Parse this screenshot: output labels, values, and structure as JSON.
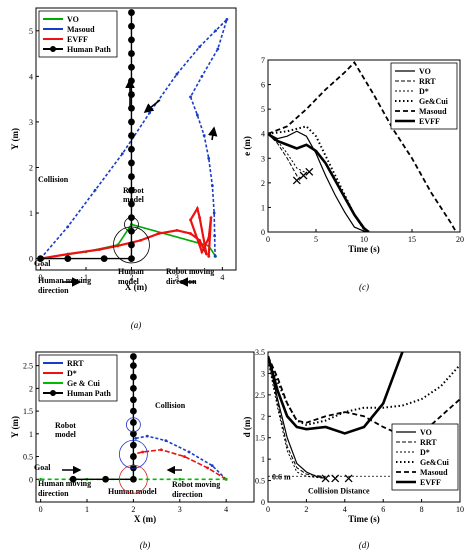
{
  "chart_data": [
    {
      "id": "a",
      "type": "line",
      "panel_label": "(a)",
      "xlabel": "X (m)",
      "ylabel": "Y (m)",
      "xlim": [
        -0.1,
        4.3
      ],
      "ylim": [
        -0.25,
        5.5
      ],
      "xticks": [
        "0",
        "1",
        "2",
        "3",
        "4"
      ],
      "yticks": [
        "0",
        "1",
        "2",
        "3",
        "4",
        "5"
      ],
      "legend_position": "top-left",
      "series": [
        {
          "name": "VO",
          "color": "#00aa00",
          "points": [
            [
              0.0,
              0.0
            ],
            [
              1.0,
              0.15
            ],
            [
              1.7,
              0.3
            ],
            [
              2.0,
              0.75
            ],
            [
              3.7,
              0.28
            ],
            [
              3.85,
              0.05
            ]
          ]
        },
        {
          "name": "Masoud",
          "color": "#1a3cc8",
          "points": [
            [
              0.0,
              0.0
            ],
            [
              0.6,
              0.7
            ],
            [
              1.2,
              1.5
            ],
            [
              1.8,
              2.3
            ],
            [
              2.4,
              3.2
            ],
            [
              3.0,
              4.05
            ],
            [
              3.5,
              4.65
            ],
            [
              3.85,
              5.0
            ],
            [
              4.1,
              5.25
            ],
            [
              3.9,
              4.6
            ],
            [
              3.55,
              4.0
            ],
            [
              3.3,
              3.55
            ],
            [
              3.45,
              3.15
            ],
            [
              3.6,
              2.7
            ],
            [
              3.7,
              2.2
            ],
            [
              3.78,
              1.6
            ],
            [
              3.82,
              1.0
            ],
            [
              3.83,
              0.5
            ],
            [
              3.84,
              0.05
            ]
          ]
        },
        {
          "name": "EVFF",
          "color": "#ee1111",
          "points": [
            [
              0.0,
              0.0
            ],
            [
              0.6,
              0.1
            ],
            [
              1.3,
              0.2
            ],
            [
              1.7,
              0.28
            ],
            [
              2.2,
              0.4
            ],
            [
              2.6,
              0.55
            ],
            [
              3.0,
              0.62
            ],
            [
              3.3,
              0.55
            ],
            [
              3.5,
              0.4
            ],
            [
              3.6,
              0.2
            ],
            [
              3.65,
              0.1
            ],
            [
              3.5,
              0.9
            ],
            [
              3.45,
              1.1
            ],
            [
              3.3,
              0.85
            ],
            [
              3.55,
              0.15
            ],
            [
              3.7,
              0.45
            ],
            [
              3.75,
              0.9
            ],
            [
              3.7,
              0.05
            ]
          ]
        },
        {
          "name": "Human Path",
          "color": "#000000",
          "points": [
            [
              0.0,
              0.0
            ],
            [
              0.6,
              0.0
            ],
            [
              1.4,
              0.0
            ],
            [
              2.0,
              0.0
            ],
            [
              2.0,
              0.3
            ],
            [
              2.0,
              0.6
            ],
            [
              2.0,
              0.9
            ],
            [
              2.0,
              1.2
            ],
            [
              2.0,
              1.5
            ],
            [
              2.0,
              1.8
            ],
            [
              2.0,
              2.1
            ],
            [
              2.0,
              2.4
            ],
            [
              2.0,
              2.7
            ],
            [
              2.0,
              3.0
            ],
            [
              2.0,
              3.3
            ],
            [
              2.0,
              3.6
            ],
            [
              2.0,
              3.9
            ],
            [
              2.0,
              4.2
            ],
            [
              2.0,
              4.5
            ],
            [
              2.0,
              4.8
            ],
            [
              2.0,
              5.1
            ],
            [
              2.0,
              5.4
            ]
          ]
        }
      ],
      "annotations": [
        "Collision",
        "Robot model",
        "Goal",
        "Human moving direction",
        "Human model",
        "Robot moving direction"
      ]
    },
    {
      "id": "b",
      "type": "line",
      "panel_label": "(b)",
      "xlabel": "X (m)",
      "ylabel": "Y (m)",
      "xlim": [
        -0.1,
        4.6
      ],
      "ylim": [
        -0.5,
        2.8
      ],
      "xticks": [
        "0",
        "1",
        "2",
        "3",
        "4"
      ],
      "yticks": [
        "0",
        "0.5",
        "1",
        "1.5",
        "2",
        "2.5"
      ],
      "legend_position": "top-left",
      "series": [
        {
          "name": "RRT",
          "color": "#1a3cc8",
          "points": [
            [
              4.0,
              0.0
            ],
            [
              3.7,
              0.3
            ],
            [
              3.2,
              0.6
            ],
            [
              2.7,
              0.85
            ],
            [
              2.3,
              0.95
            ],
            [
              2.05,
              0.9
            ]
          ]
        },
        {
          "name": "D*",
          "color": "#ee1111",
          "points": [
            [
              4.0,
              0.0
            ],
            [
              3.6,
              0.25
            ],
            [
              3.1,
              0.5
            ],
            [
              2.6,
              0.65
            ],
            [
              2.2,
              0.6
            ],
            [
              2.0,
              0.55
            ]
          ]
        },
        {
          "name": "Ge & Cui",
          "color": "#00bb00",
          "points": [
            [
              0.0,
              0.0
            ],
            [
              1.0,
              0.0
            ],
            [
              2.0,
              0.0
            ],
            [
              3.0,
              0.0
            ],
            [
              4.0,
              0.0
            ]
          ]
        },
        {
          "name": "Human Path",
          "color": "#000000",
          "points": [
            [
              0.7,
              0.0
            ],
            [
              1.4,
              0.0
            ],
            [
              2.0,
              0.0
            ],
            [
              2.0,
              0.25
            ],
            [
              2.0,
              0.5
            ],
            [
              2.0,
              0.75
            ],
            [
              2.0,
              1.0
            ],
            [
              2.0,
              1.25
            ],
            [
              2.0,
              1.5
            ],
            [
              2.0,
              1.75
            ],
            [
              2.0,
              2.0
            ],
            [
              2.0,
              2.25
            ],
            [
              2.0,
              2.5
            ],
            [
              2.0,
              2.7
            ]
          ]
        }
      ],
      "annotations": [
        "Collision",
        "Robot model",
        "Goal",
        "Human moving direction",
        "Human model",
        "Robot moving direction"
      ]
    },
    {
      "id": "c",
      "type": "line",
      "panel_label": "(c)",
      "xlabel": "Time (s)",
      "ylabel": "e (m)",
      "xlim": [
        0,
        20
      ],
      "ylim": [
        0,
        7
      ],
      "xticks": [
        "0",
        "5",
        "10",
        "15",
        "20"
      ],
      "yticks": [
        "0",
        "1",
        "2",
        "3",
        "4",
        "5",
        "6",
        "7"
      ],
      "legend_position": "top-right",
      "series": [
        {
          "name": "VO",
          "style": "solid-thin",
          "points": [
            [
              0,
              4.0
            ],
            [
              1,
              3.8
            ],
            [
              2,
              3.9
            ],
            [
              3,
              4.1
            ],
            [
              4,
              3.9
            ],
            [
              5,
              3.2
            ],
            [
              6,
              2.3
            ],
            [
              7,
              1.5
            ],
            [
              8,
              0.8
            ],
            [
              9,
              0.2
            ],
            [
              10.2,
              0.0
            ]
          ]
        },
        {
          "name": "RRT",
          "style": "dashed-thin",
          "points": [
            [
              0,
              4.0
            ],
            [
              1,
              3.6
            ],
            [
              2,
              3.0
            ],
            [
              3,
              2.3
            ],
            [
              3.3,
              2.1
            ]
          ]
        },
        {
          "name": "D*",
          "style": "dashed-fine",
          "points": [
            [
              0,
              4.0
            ],
            [
              1,
              3.7
            ],
            [
              2,
              3.2
            ],
            [
              3,
              2.6
            ],
            [
              4,
              2.4
            ]
          ]
        },
        {
          "name": "Ge&Cui",
          "style": "dotted-thick",
          "points": [
            [
              0,
              4.0
            ],
            [
              2,
              4.1
            ],
            [
              4,
              4.3
            ],
            [
              5,
              3.9
            ],
            [
              6,
              3.1
            ],
            [
              7,
              2.3
            ],
            [
              8,
              1.5
            ],
            [
              9,
              0.7
            ],
            [
              10,
              0.1
            ],
            [
              10.3,
              0.0
            ]
          ]
        },
        {
          "name": "Masoud",
          "style": "dashed-thick",
          "points": [
            [
              0,
              4.0
            ],
            [
              2,
              4.3
            ],
            [
              4,
              5.0
            ],
            [
              6,
              5.8
            ],
            [
              8,
              6.5
            ],
            [
              9,
              6.9
            ],
            [
              11,
              5.6
            ],
            [
              13,
              4.2
            ],
            [
              15,
              3.0
            ],
            [
              17,
              1.6
            ],
            [
              19,
              0.4
            ],
            [
              19.6,
              0.0
            ]
          ]
        },
        {
          "name": "EVFF",
          "style": "solid-thick",
          "points": [
            [
              0,
              4.0
            ],
            [
              1,
              3.7
            ],
            [
              2,
              3.55
            ],
            [
              3,
              3.4
            ],
            [
              4,
              3.55
            ],
            [
              5,
              3.3
            ],
            [
              6,
              2.8
            ],
            [
              7,
              2.1
            ],
            [
              8,
              1.4
            ],
            [
              9,
              0.7
            ],
            [
              10,
              0.15
            ],
            [
              10.5,
              0.0
            ]
          ]
        }
      ],
      "collision_markers": [
        [
          3.0,
          2.1
        ],
        [
          3.7,
          2.3
        ],
        [
          4.3,
          2.45
        ]
      ]
    },
    {
      "id": "d",
      "type": "line",
      "panel_label": "(d)",
      "xlabel": "Time (s)",
      "ylabel": "d (m)",
      "xlim": [
        0,
        10
      ],
      "ylim": [
        0,
        3.5
      ],
      "xticks": [
        "0",
        "2",
        "4",
        "6",
        "8",
        "10"
      ],
      "yticks": [
        "0",
        "0.5",
        "1",
        "1.5",
        "2",
        "2.5",
        "3",
        "3.5"
      ],
      "legend_position": "right",
      "annotations": [
        "0.6 m",
        "Collision Distance"
      ],
      "collision_distance": 0.6,
      "series": [
        {
          "name": "VO",
          "style": "solid-thin",
          "points": [
            [
              0,
              3.4
            ],
            [
              0.5,
              2.4
            ],
            [
              1,
              1.5
            ],
            [
              1.5,
              0.9
            ],
            [
              2,
              0.7
            ],
            [
              2.5,
              0.6
            ],
            [
              3,
              0.55
            ]
          ]
        },
        {
          "name": "RRT",
          "style": "dashed-thin",
          "points": [
            [
              0,
              3.4
            ],
            [
              0.5,
              2.3
            ],
            [
              1,
              1.3
            ],
            [
              1.5,
              0.8
            ],
            [
              2,
              0.65
            ],
            [
              2.8,
              0.6
            ]
          ]
        },
        {
          "name": "D*",
          "style": "dashed-fine",
          "points": [
            [
              0,
              3.3
            ],
            [
              0.5,
              2.2
            ],
            [
              1,
              1.2
            ],
            [
              1.5,
              0.7
            ],
            [
              2,
              0.6
            ],
            [
              3,
              0.55
            ]
          ]
        },
        {
          "name": "Ge&Cui",
          "style": "dotted-thick",
          "points": [
            [
              0,
              3.4
            ],
            [
              0.5,
              2.8
            ],
            [
              1,
              2.3
            ],
            [
              1.5,
              1.9
            ],
            [
              2,
              1.8
            ],
            [
              3,
              1.9
            ],
            [
              4,
              2.1
            ],
            [
              5,
              2.2
            ],
            [
              6,
              2.2
            ],
            [
              7,
              2.25
            ],
            [
              8,
              2.4
            ],
            [
              9,
              2.7
            ],
            [
              10,
              3.2
            ]
          ]
        },
        {
          "name": "Masoud",
          "style": "dashed-thick",
          "points": [
            [
              0,
              3.4
            ],
            [
              0.5,
              2.9
            ],
            [
              1,
              2.3
            ],
            [
              1.5,
              1.9
            ],
            [
              2,
              1.85
            ],
            [
              3,
              2.0
            ],
            [
              4,
              2.1
            ],
            [
              5,
              2.0
            ],
            [
              6,
              1.75
            ],
            [
              7,
              1.55
            ],
            [
              8,
              1.6
            ],
            [
              9,
              2.0
            ],
            [
              10,
              2.4
            ]
          ]
        },
        {
          "name": "EVFF",
          "style": "solid-thick",
          "points": [
            [
              0,
              3.4
            ],
            [
              0.5,
              2.6
            ],
            [
              1,
              2.0
            ],
            [
              1.5,
              1.75
            ],
            [
              2,
              1.7
            ],
            [
              3,
              1.75
            ],
            [
              4,
              1.6
            ],
            [
              5,
              1.75
            ],
            [
              6,
              2.3
            ],
            [
              6.5,
              2.9
            ],
            [
              7,
              3.5
            ]
          ]
        }
      ],
      "collision_markers": [
        [
          3.0,
          0.55
        ],
        [
          3.5,
          0.55
        ],
        [
          4.2,
          0.55
        ]
      ]
    }
  ]
}
